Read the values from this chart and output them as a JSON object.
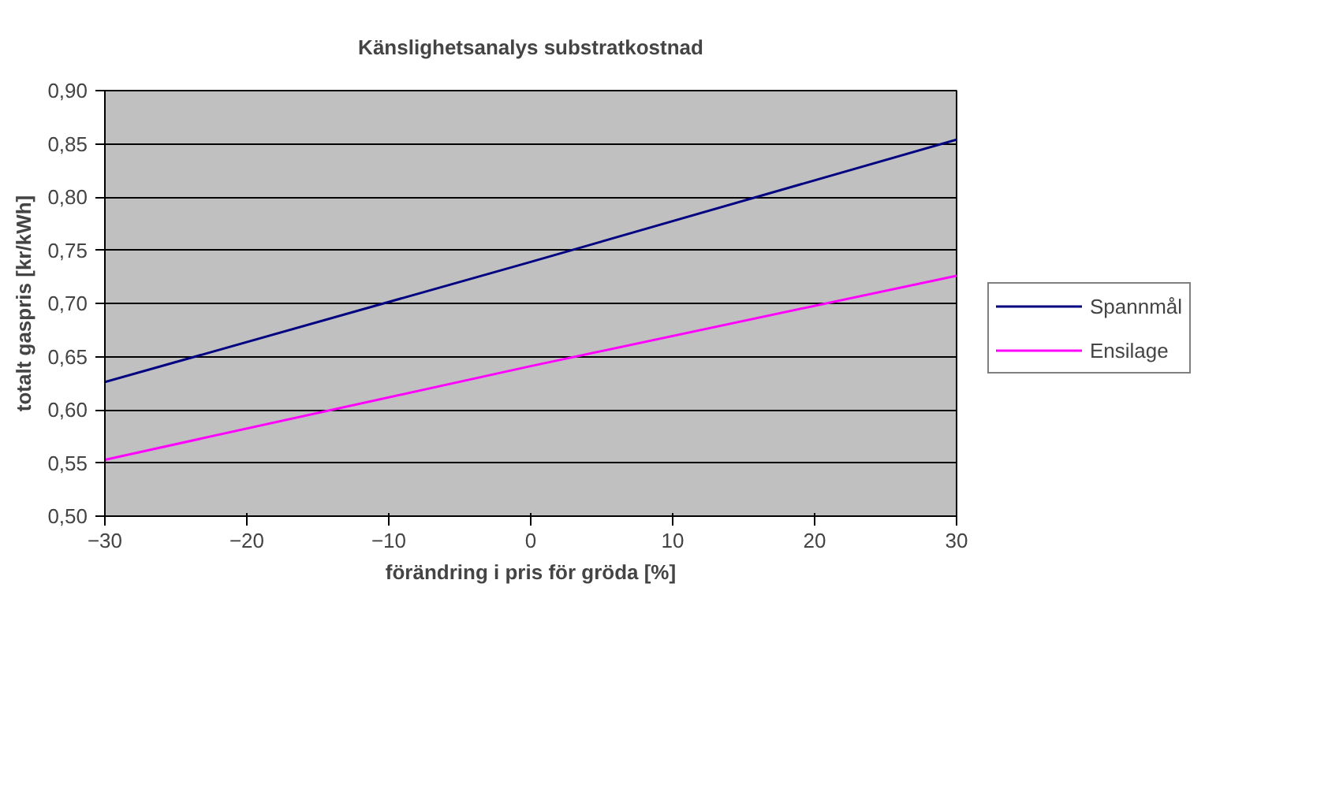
{
  "chart_data": {
    "type": "line",
    "title": "Känslighetsanalys substratkostnad",
    "xlabel": "förändring i pris för gröda [%]",
    "ylabel": "totalt gaspris [kr/kWh]",
    "x": [
      -30,
      0,
      30
    ],
    "series": [
      {
        "name": "Spannmål",
        "color": "#000080",
        "values": [
          0.626,
          0.739,
          0.854
        ]
      },
      {
        "name": "Ensilage",
        "color": "#ff00ff",
        "values": [
          0.553,
          0.641,
          0.726
        ]
      }
    ],
    "xlim": [
      -30,
      30
    ],
    "xticks": [
      -30,
      -20,
      -10,
      0,
      10,
      20,
      30
    ],
    "ylim": [
      0.5,
      0.9
    ],
    "yticks": [
      {
        "value": 0.5,
        "label": "0,50"
      },
      {
        "value": 0.55,
        "label": "0,55"
      },
      {
        "value": 0.6,
        "label": "0,60"
      },
      {
        "value": 0.65,
        "label": "0,65"
      },
      {
        "value": 0.7,
        "label": "0,70"
      },
      {
        "value": 0.75,
        "label": "0,75"
      },
      {
        "value": 0.8,
        "label": "0,80"
      },
      {
        "value": 0.85,
        "label": "0,85"
      },
      {
        "value": 0.9,
        "label": "0,90"
      }
    ],
    "grid": "y",
    "legend": "right",
    "marker": "none",
    "line_style": "solid"
  }
}
